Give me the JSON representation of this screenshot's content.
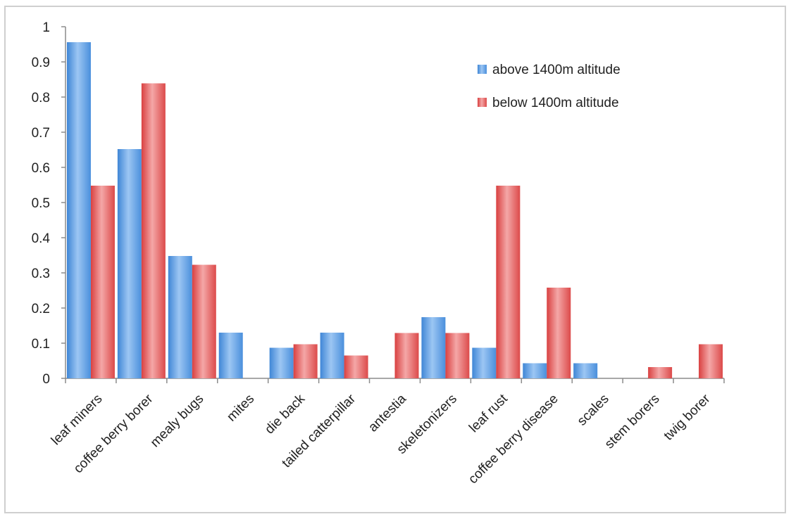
{
  "chart_data": {
    "type": "bar",
    "title": "",
    "xlabel": "",
    "ylabel": "",
    "ylim": [
      0,
      1
    ],
    "y_ticks": [
      "0",
      "0.1",
      "0.2",
      "0.3",
      "0.4",
      "0.5",
      "0.6",
      "0.7",
      "0.8",
      "0.9",
      "1"
    ],
    "grid": false,
    "legend_position": "top-right",
    "categories": [
      "leaf miners",
      "coffee berry borer",
      "mealy bugs",
      "mites",
      "die back",
      "tailed catterpillar",
      "antestia",
      "skeletonizers",
      "leaf rust",
      "coffee berry disease",
      "scales",
      "stem borers",
      "twig borer"
    ],
    "series": [
      {
        "name": "above 1400m altitude",
        "color": "#5b9bd5",
        "values": [
          0.956,
          0.652,
          0.348,
          0.13,
          0.087,
          0.13,
          0,
          0.174,
          0.087,
          0.043,
          0.043,
          0,
          0
        ]
      },
      {
        "name": "below 1400m altitude",
        "color": "#e06666",
        "values": [
          0.548,
          0.839,
          0.323,
          0,
          0.097,
          0.065,
          0.129,
          0.129,
          0.548,
          0.258,
          0,
          0.032,
          0.097
        ]
      }
    ]
  }
}
